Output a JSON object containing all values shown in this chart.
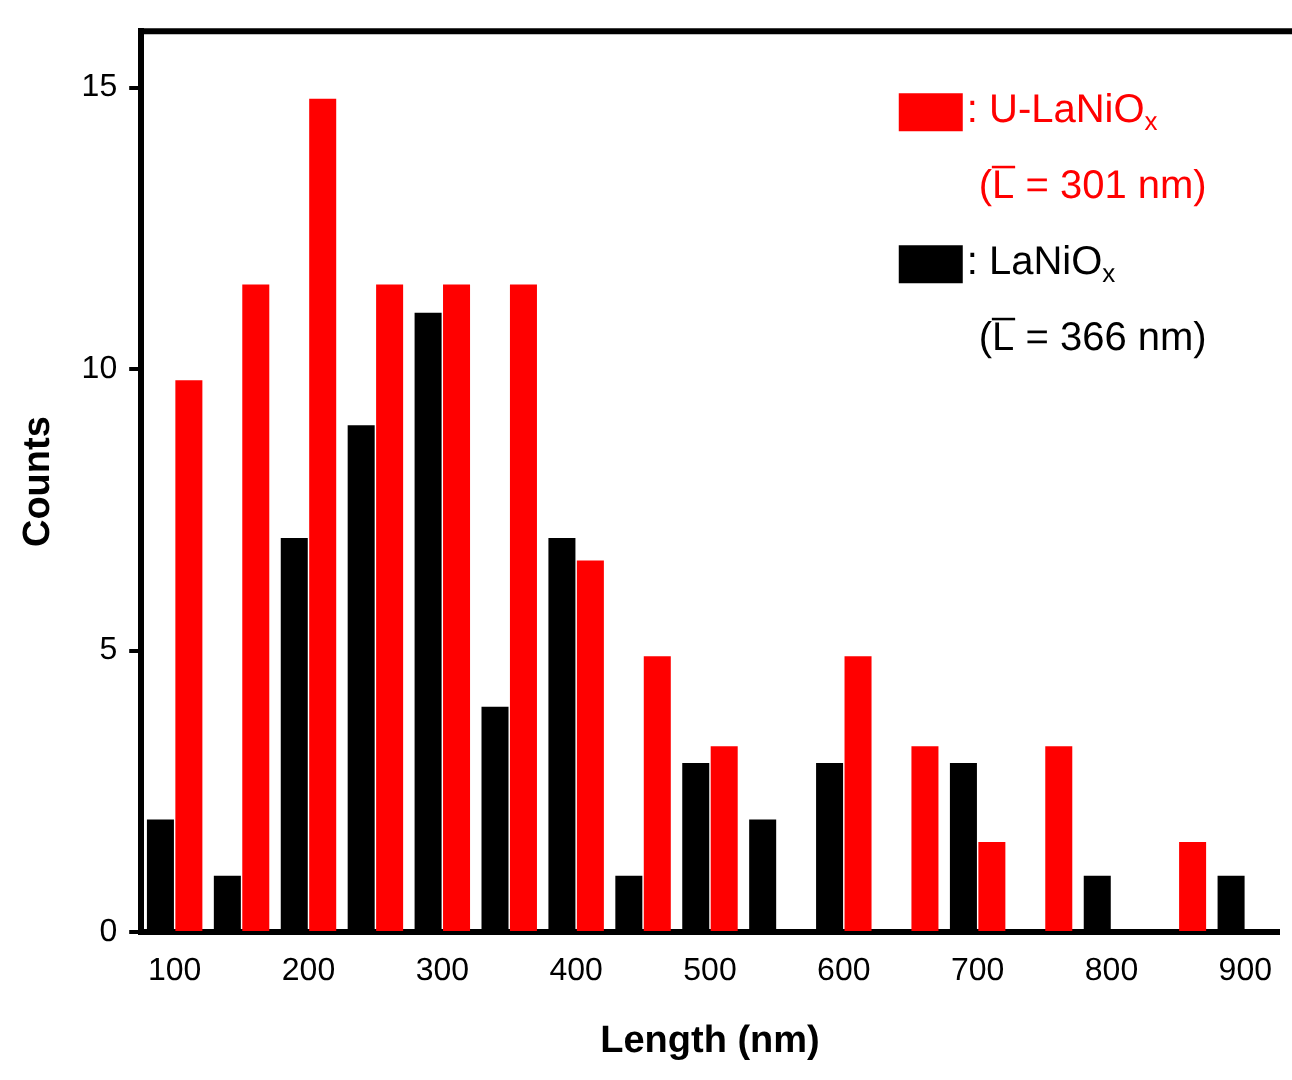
{
  "chart_data": {
    "type": "bar",
    "xlabel": "Length (nm)",
    "ylabel": "Counts",
    "categories": [
      "100",
      null,
      "200",
      null,
      "300",
      null,
      "400",
      null,
      "500",
      null,
      "600",
      null,
      "700",
      null,
      "800",
      null,
      "900"
    ],
    "series": [
      {
        "name": ": LaNiO$_{x}$",
        "color": "#000000",
        "values": [
          2,
          1,
          7,
          9,
          11,
          4,
          7,
          1,
          3,
          2,
          3,
          0,
          3,
          0,
          1,
          0,
          1
        ]
      },
      {
        "name": ": U-LaNiO$_{x}$",
        "color": "#ff0000",
        "values": [
          9.8,
          11.5,
          14.8,
          11.5,
          11.5,
          11.5,
          6.6,
          4.9,
          3.3,
          0,
          4.9,
          3.3,
          1.6,
          3.3,
          0,
          1.6,
          0
        ]
      }
    ],
    "annotations": [
      "(L̅ = 366 nm)",
      "(L̅ = 301 nm)"
    ],
    "ylim": [
      0,
      16
    ],
    "yticks": [
      0,
      5,
      10,
      15
    ],
    "grid": false,
    "legend": "top right"
  }
}
